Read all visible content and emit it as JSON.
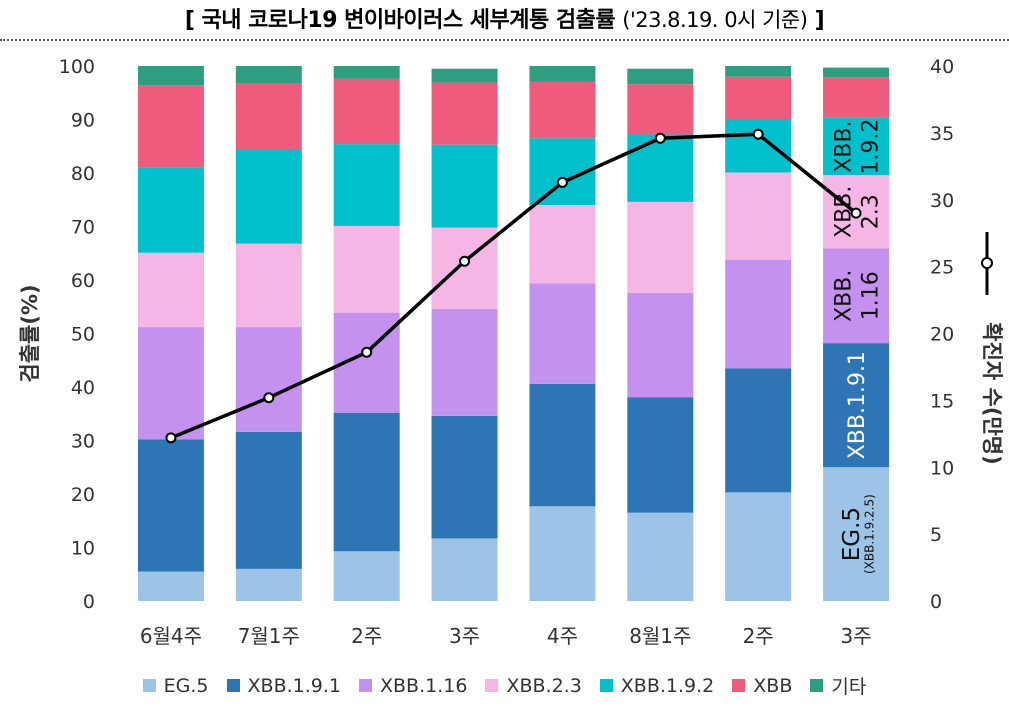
{
  "title": {
    "main": "[ 국내 코로나19 변이바이러스 세부계통 검출률",
    "date": "('23.8.19. 0시 기준)",
    "close": "]"
  },
  "chart_data": {
    "type": "bar",
    "stacked": true,
    "categories": [
      "6월4주",
      "7월1주",
      "2주",
      "3주",
      "4주",
      "8월1주",
      "2주",
      "3주"
    ],
    "ylabel": "검출률(%)",
    "ylim": [
      0,
      100
    ],
    "yticks": [
      "0",
      "10",
      "20",
      "30",
      "40",
      "50",
      "60",
      "70",
      "80",
      "90",
      "100"
    ],
    "y2label": "확진자 수(만명)",
    "y2lim": [
      0,
      40
    ],
    "y2ticks": [
      "0",
      "5",
      "10",
      "15",
      "20",
      "25",
      "30",
      "35",
      "40"
    ],
    "series": [
      {
        "name": "EG.5",
        "color": "#9dc3e6",
        "values": [
          5.5,
          6.0,
          9.3,
          11.7,
          17.7,
          16.5,
          20.3,
          25.0
        ]
      },
      {
        "name": "XBB.1.9.1",
        "color": "#2e75b6",
        "values": [
          24.7,
          25.6,
          25.9,
          22.9,
          22.9,
          21.6,
          23.2,
          23.2
        ]
      },
      {
        "name": "XBB.1.16",
        "color": "#c492ee",
        "values": [
          21.0,
          19.6,
          18.7,
          20.0,
          18.8,
          19.5,
          20.3,
          17.7
        ]
      },
      {
        "name": "XBB.2.3",
        "color": "#f5b6e6",
        "values": [
          13.9,
          15.6,
          16.2,
          15.2,
          14.6,
          17.0,
          16.3,
          13.7
        ]
      },
      {
        "name": "XBB.1.9.2",
        "color": "#00c0cc",
        "values": [
          16.0,
          17.5,
          15.3,
          15.5,
          12.5,
          12.6,
          9.9,
          10.7
        ]
      },
      {
        "name": "XBB",
        "color": "#ef5b7d",
        "values": [
          15.3,
          12.4,
          12.2,
          11.6,
          10.6,
          9.4,
          8.0,
          7.6
        ]
      },
      {
        "name": "기타",
        "color": "#2e9e80",
        "values": [
          3.6,
          3.3,
          2.4,
          2.6,
          2.9,
          2.9,
          2.0,
          1.8
        ]
      }
    ],
    "line": {
      "name": "확진자 수(만명)",
      "axis": "right",
      "color": "#000000",
      "values": [
        12.2,
        15.2,
        18.6,
        25.4,
        31.3,
        34.6,
        34.9,
        29.0
      ]
    },
    "bar_labels": [
      {
        "series": "EG.5",
        "lines": [
          "EG.5",
          "(XBB.1.9.2.5)"
        ]
      },
      {
        "series": "XBB.1.9.1",
        "lines": [
          "XBB.1.9.1"
        ]
      },
      {
        "series": "XBB.1.16",
        "lines": [
          "XBB.",
          "1.16"
        ]
      },
      {
        "series": "XBB.2.3",
        "lines": [
          "XBB.",
          "2.3"
        ]
      },
      {
        "series": "XBB.1.9.2",
        "lines": [
          "XBB.",
          "1.9.2"
        ]
      }
    ],
    "legend": [
      "EG.5",
      "XBB.1.9.1",
      "XBB.1.16",
      "XBB.2.3",
      "XBB.1.9.2",
      "XBB",
      "기타"
    ],
    "legend_position": "bottom"
  }
}
